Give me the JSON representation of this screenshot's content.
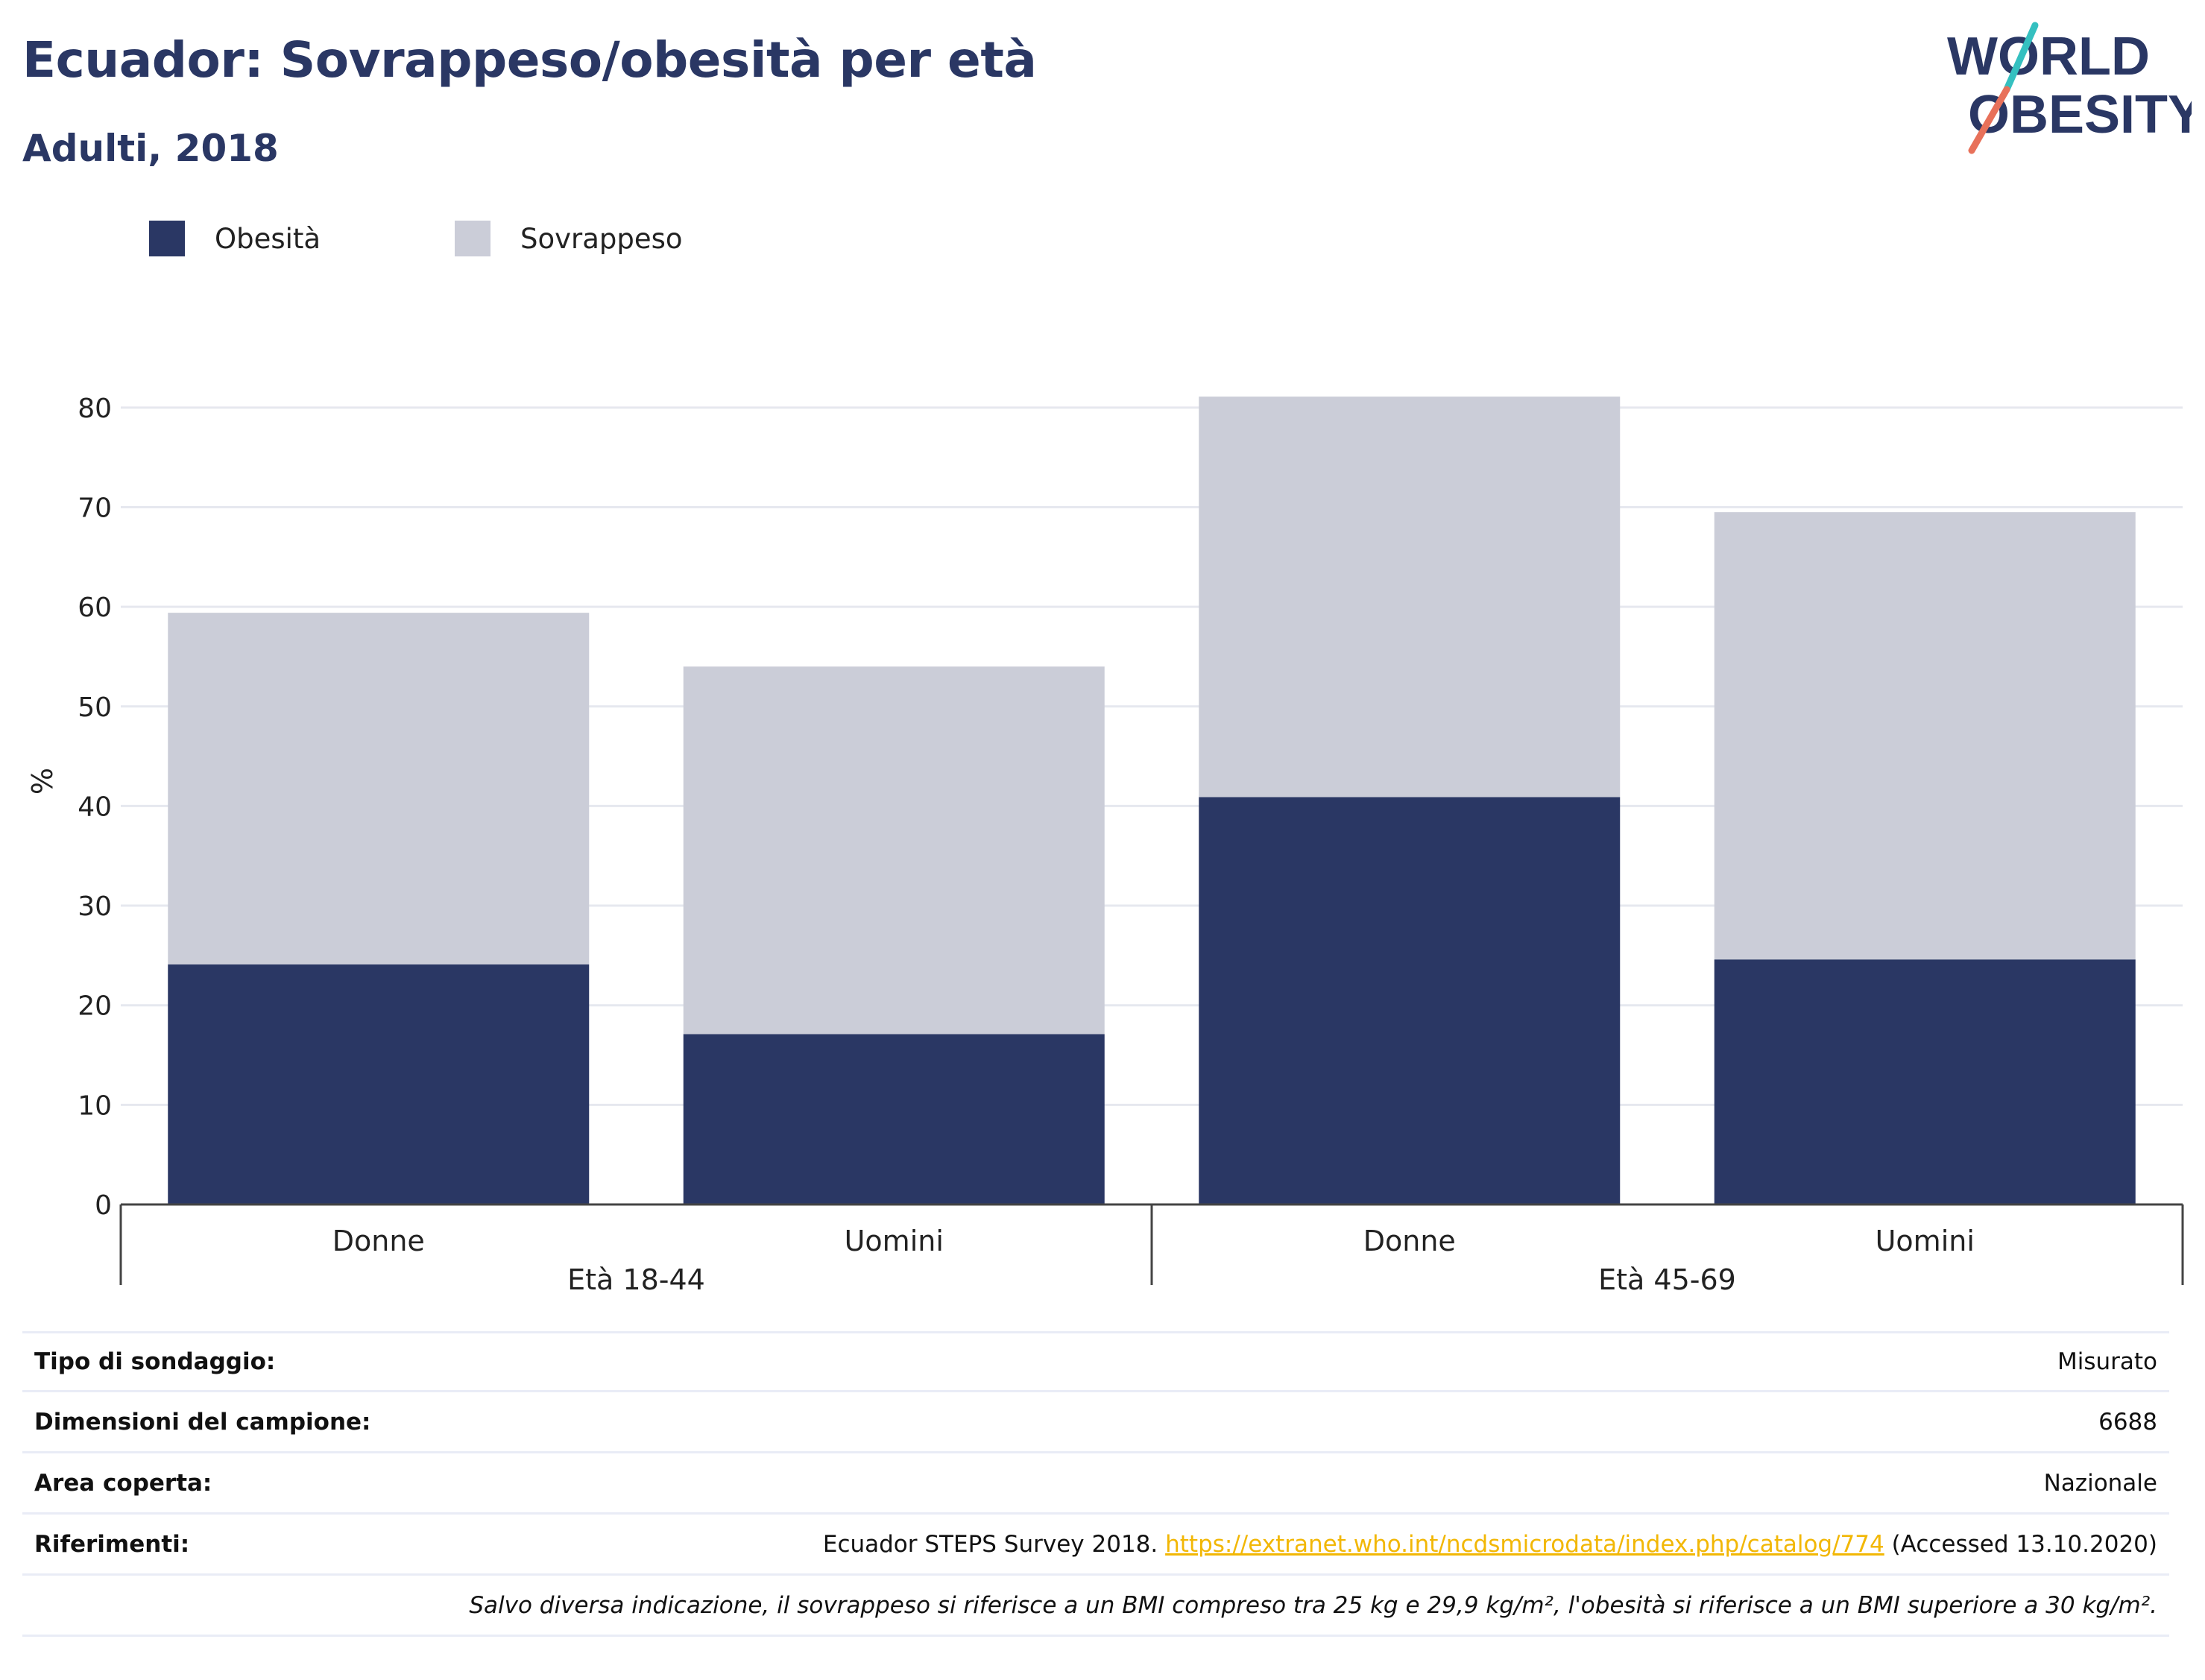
{
  "header": {
    "title": "Ecuador: Sovrappeso/obesità per età",
    "subtitle": "Adulti, 2018"
  },
  "logo": {
    "line1": "WORLD",
    "line2": "OBESITY",
    "slash_colors": [
      "#35c0c0",
      "#e8715a"
    ]
  },
  "legend": {
    "items": [
      {
        "label": "Obesità",
        "color": "#2a3764"
      },
      {
        "label": "Sovrappeso",
        "color": "#cbcdd8"
      }
    ]
  },
  "chart_data": {
    "type": "bar",
    "stacked": true,
    "title": "Ecuador: Sovrappeso/obesità per età",
    "subtitle": "Adulti, 2018",
    "ylabel": "%",
    "xlabel": "",
    "ylim": [
      0,
      85
    ],
    "yticks": [
      0,
      10,
      20,
      30,
      40,
      50,
      60,
      70,
      80
    ],
    "grid": true,
    "legend_position": "top-left",
    "categories": [
      "Donne",
      "Uomini",
      "Donne",
      "Uomini"
    ],
    "groups": [
      {
        "label": "Età 18-44",
        "categories": [
          "Donne",
          "Uomini"
        ]
      },
      {
        "label": "Età 45-69",
        "categories": [
          "Donne",
          "Uomini"
        ]
      }
    ],
    "series": [
      {
        "name": "Obesità",
        "color": "#2a3764",
        "values": [
          24.1,
          17.1,
          40.9,
          24.6
        ]
      },
      {
        "name": "Sovrappeso",
        "color": "#cbcdd8",
        "values": [
          35.3,
          36.9,
          40.2,
          44.9
        ]
      }
    ],
    "totals": [
      59.4,
      54.0,
      81.1,
      69.5
    ]
  },
  "info": {
    "rows": [
      {
        "label": "Tipo di sondaggio:",
        "value": "Misurato"
      },
      {
        "label": "Dimensioni del campione:",
        "value": "6688"
      },
      {
        "label": "Area coperta:",
        "value": "Nazionale"
      }
    ],
    "references": {
      "label": "Riferimenti:",
      "prefix": "Ecuador STEPS Survey 2018.",
      "link": "https://extranet.who.int/ncdsmicrodata/index.php/catalog/774",
      "suffix": "(Accessed 13.10.2020)"
    },
    "note": "Salvo diversa indicazione, il sovrappeso si riferisce a un BMI compreso tra 25 kg e 29,9 kg/m², l'obesità si riferisce a un BMI superiore a 30 kg/m²."
  }
}
